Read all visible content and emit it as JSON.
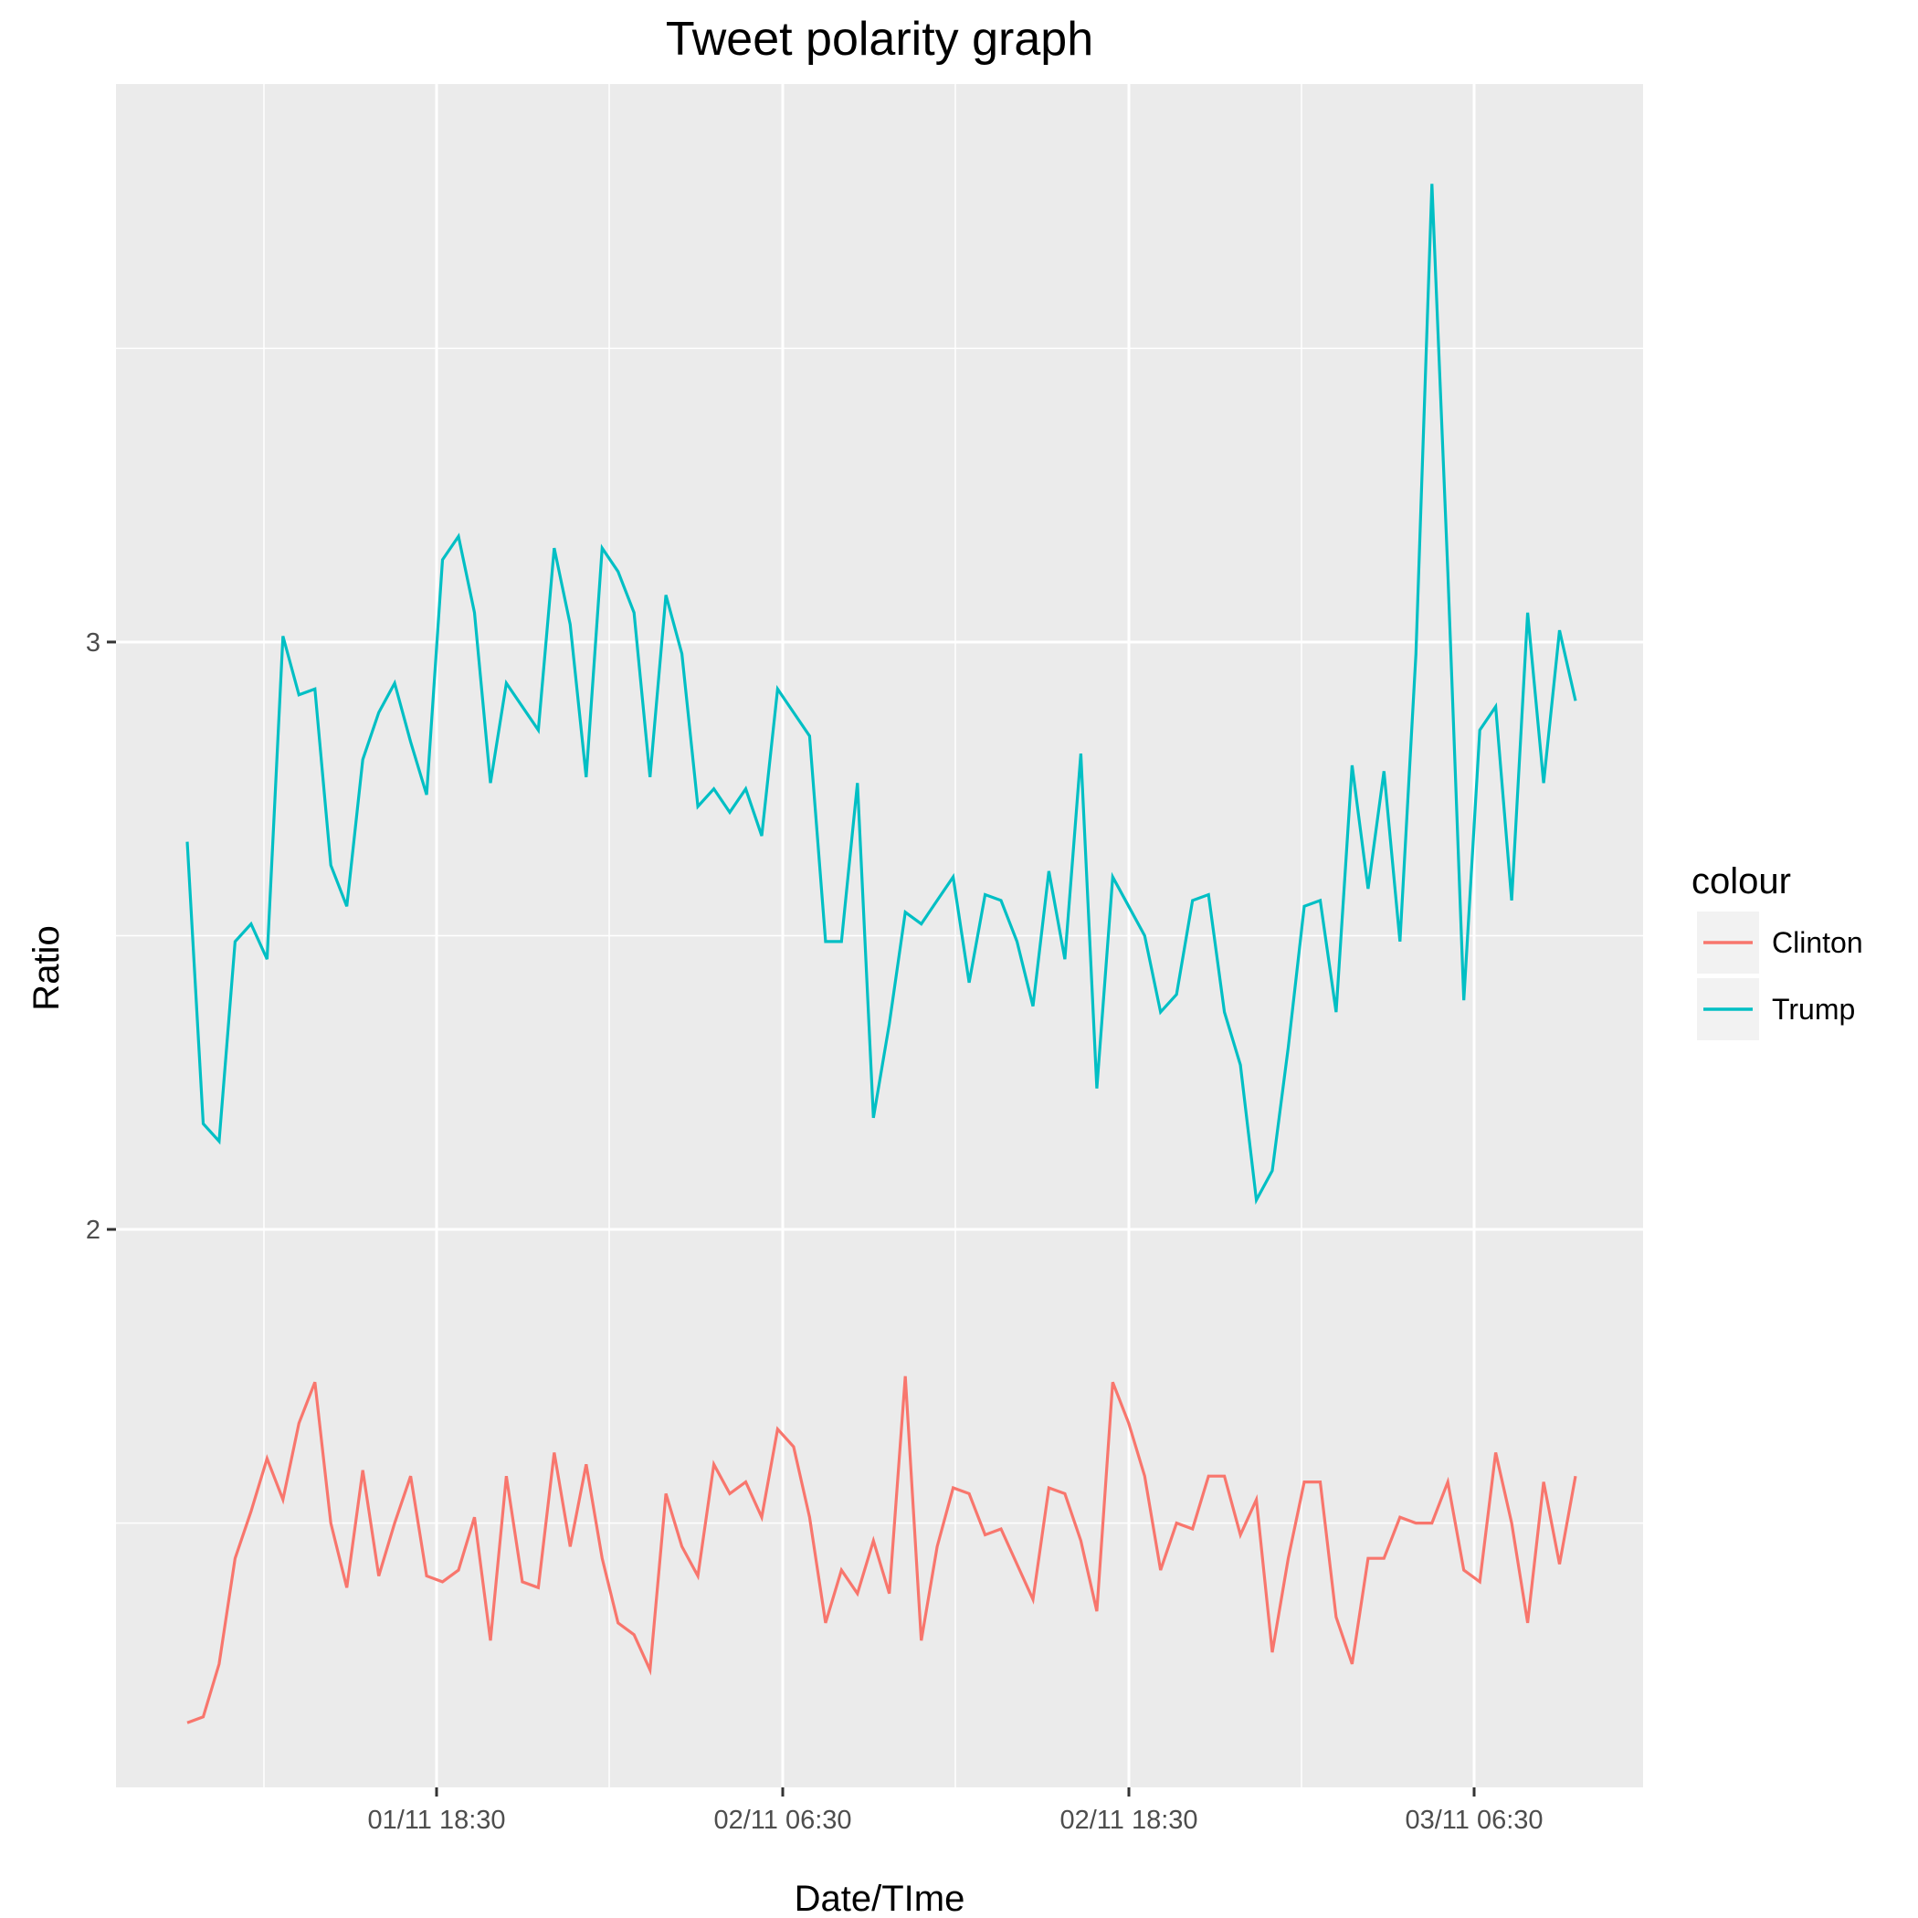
{
  "chart_data": {
    "type": "line",
    "title": "Tweet polarity graph",
    "xlabel": "Date/TIme",
    "ylabel": "Ratio",
    "x_tick_labels": [
      "01/11 18:30",
      "02/11 06:30",
      "02/11 18:30",
      "03/11 06:30"
    ],
    "y_tick_labels": [
      "2",
      "3"
    ],
    "ylim": [
      1.05,
      3.95
    ],
    "grid": true,
    "legend": {
      "title": "colour",
      "placement": "right"
    },
    "series": [
      {
        "name": "Clinton",
        "color": "#F8766D",
        "values": [
          1.16,
          1.17,
          1.26,
          1.44,
          1.52,
          1.61,
          1.54,
          1.67,
          1.74,
          1.5,
          1.39,
          1.59,
          1.41,
          1.5,
          1.58,
          1.41,
          1.4,
          1.42,
          1.51,
          1.3,
          1.58,
          1.4,
          1.39,
          1.62,
          1.46,
          1.6,
          1.44,
          1.33,
          1.31,
          1.25,
          1.55,
          1.46,
          1.41,
          1.6,
          1.55,
          1.57,
          1.51,
          1.66,
          1.63,
          1.51,
          1.33,
          1.42,
          1.38,
          1.47,
          1.38,
          1.75,
          1.3,
          1.46,
          1.56,
          1.55,
          1.48,
          1.49,
          1.43,
          1.37,
          1.56,
          1.55,
          1.47,
          1.35,
          1.74,
          1.67,
          1.58,
          1.42,
          1.5,
          1.49,
          1.58,
          1.58,
          1.48,
          1.54,
          1.28,
          1.44,
          1.57,
          1.57,
          1.34,
          1.26,
          1.44,
          1.44,
          1.51,
          1.5,
          1.5,
          1.57,
          1.42,
          1.4,
          1.62,
          1.5,
          1.33,
          1.57,
          1.43,
          1.58
        ]
      },
      {
        "name": "Trump",
        "color": "#00BFC4",
        "values": [
          2.66,
          2.18,
          2.15,
          2.49,
          2.52,
          2.46,
          3.01,
          2.91,
          2.92,
          2.62,
          2.55,
          2.8,
          2.88,
          2.93,
          2.83,
          2.74,
          3.14,
          3.18,
          3.05,
          2.76,
          2.93,
          2.89,
          2.85,
          3.16,
          3.03,
          2.77,
          3.16,
          3.12,
          3.05,
          2.77,
          3.08,
          2.98,
          2.72,
          2.75,
          2.71,
          2.75,
          2.67,
          2.92,
          2.88,
          2.84,
          2.49,
          2.49,
          2.76,
          2.19,
          2.35,
          2.54,
          2.52,
          2.56,
          2.6,
          2.42,
          2.57,
          2.56,
          2.49,
          2.38,
          2.61,
          2.46,
          2.81,
          2.24,
          2.6,
          2.55,
          2.5,
          2.37,
          2.4,
          2.56,
          2.57,
          2.37,
          2.28,
          2.05,
          2.1,
          2.31,
          2.55,
          2.56,
          2.37,
          2.79,
          2.58,
          2.78,
          2.49,
          2.98,
          3.78,
          3.12,
          2.39,
          2.85,
          2.89,
          2.56,
          3.05,
          2.76,
          3.02,
          2.9
        ]
      }
    ]
  }
}
